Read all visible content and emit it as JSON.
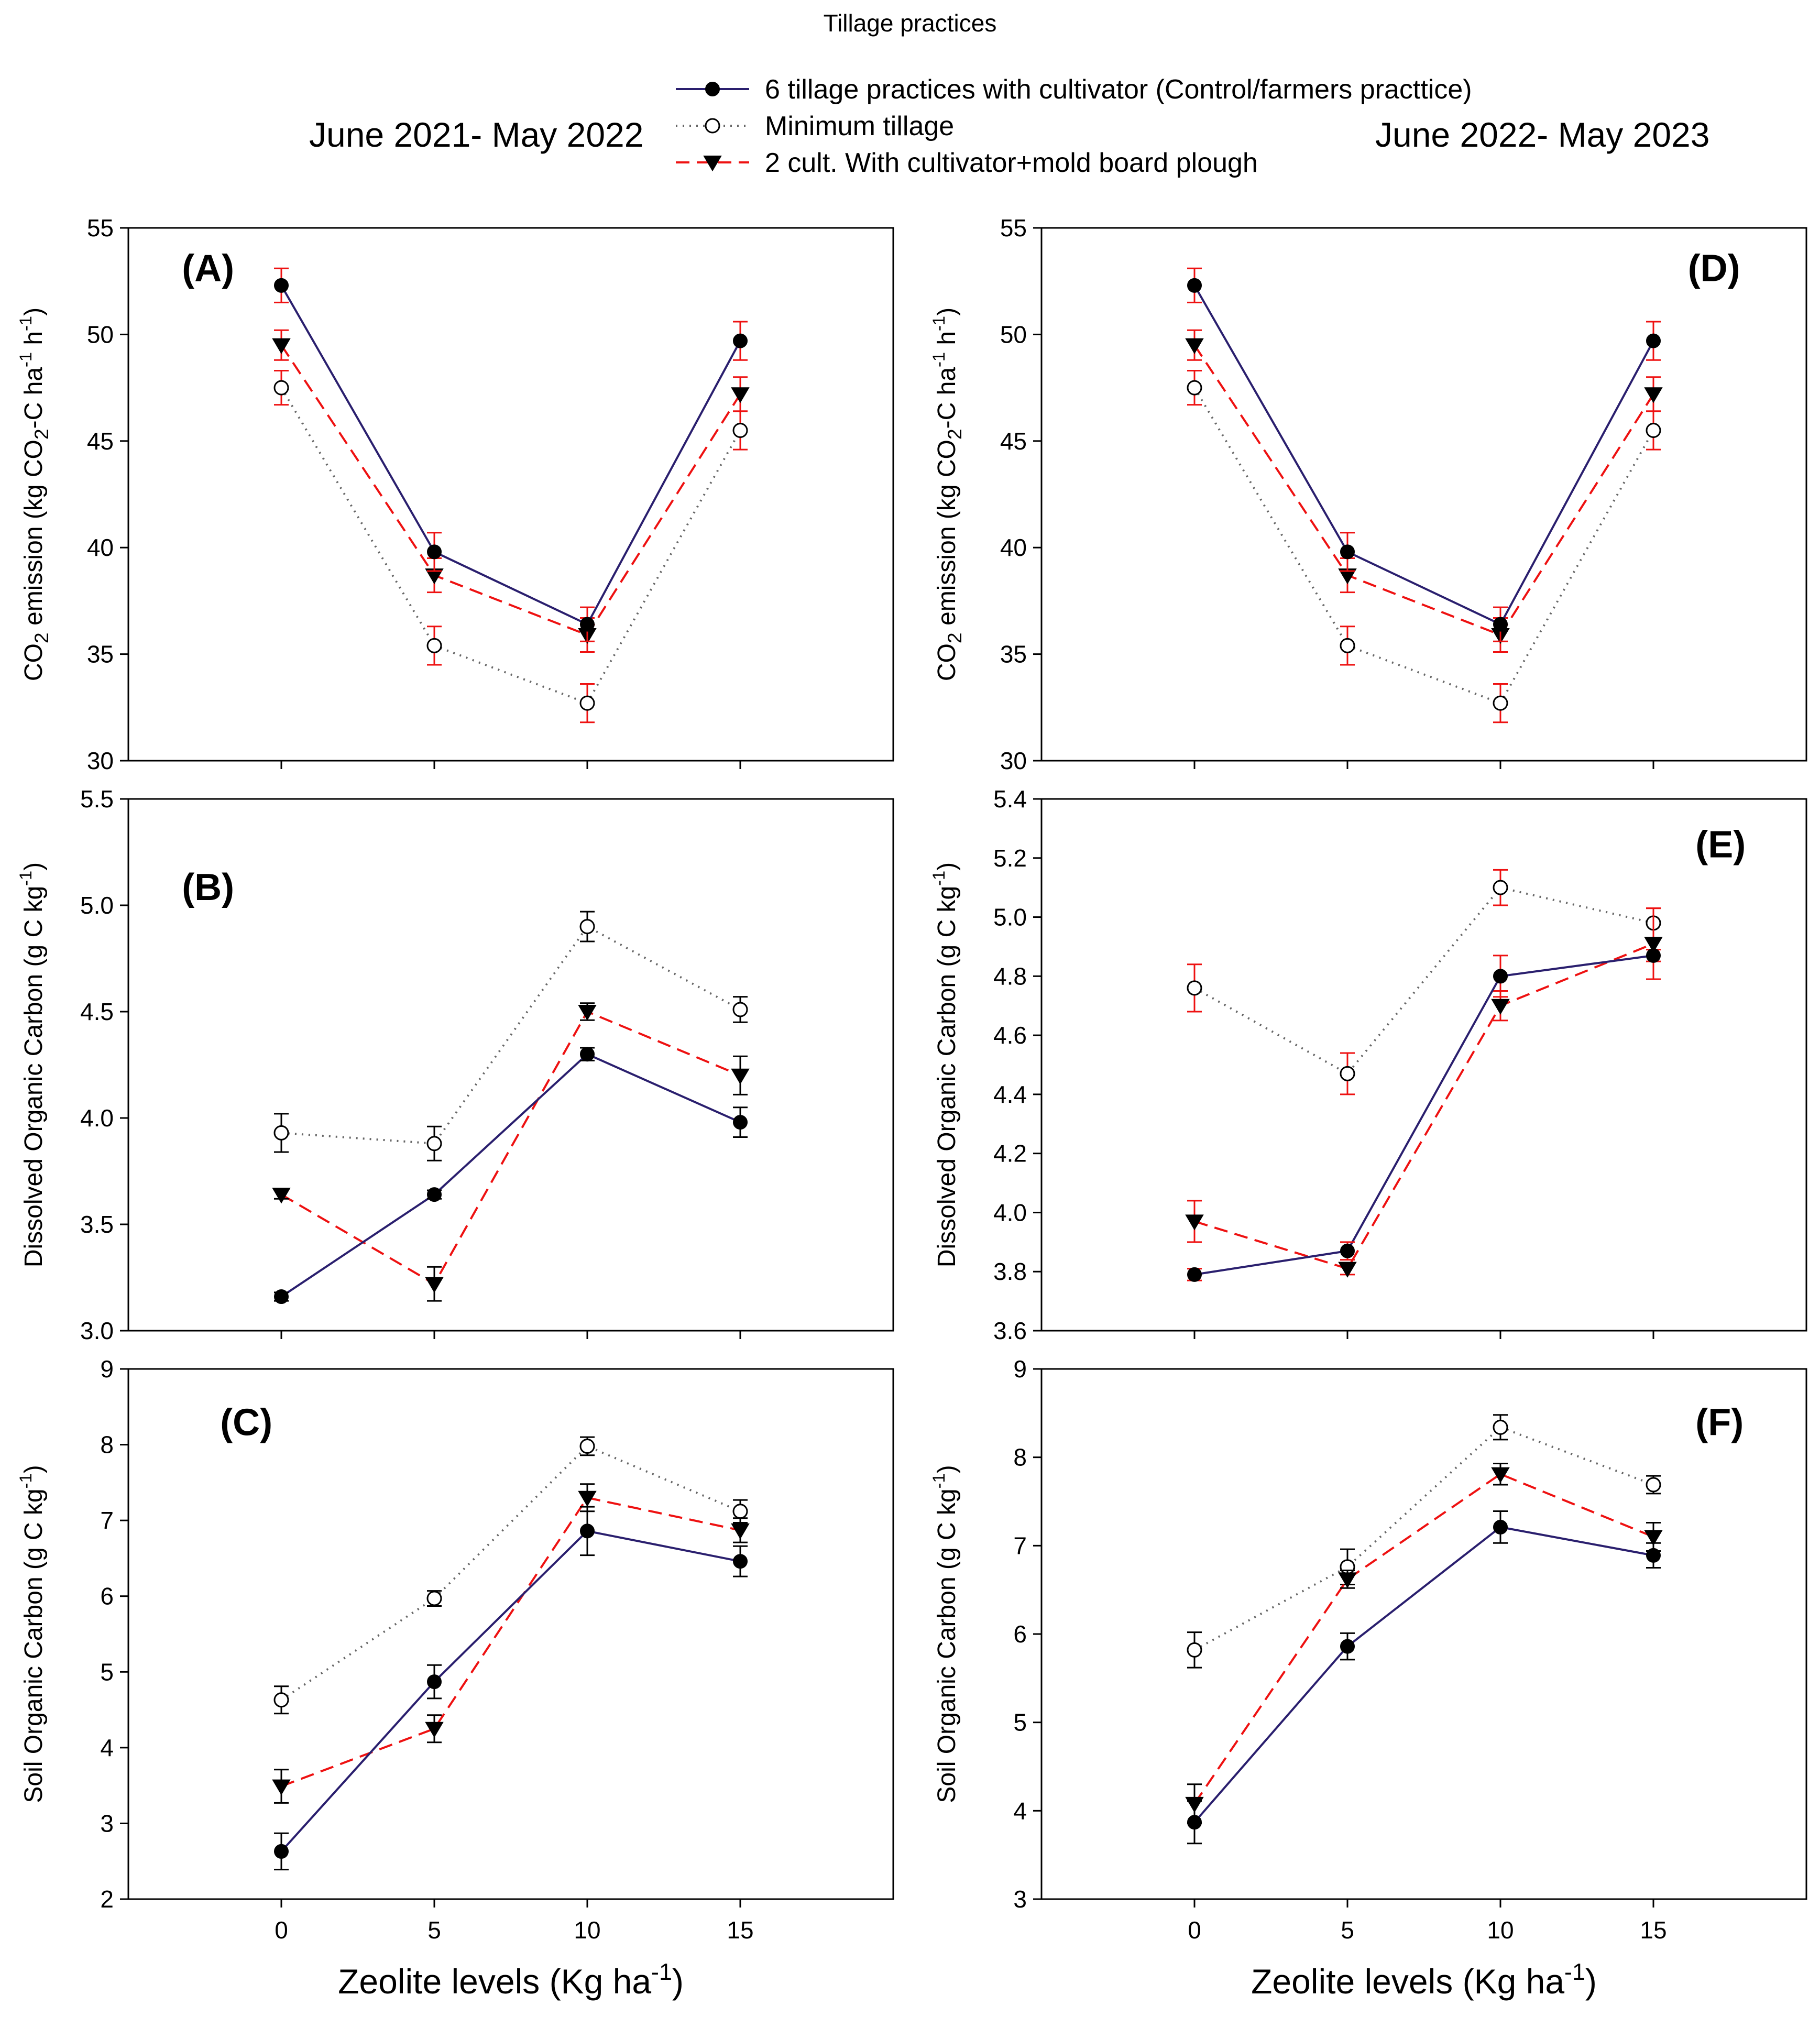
{
  "figure": {
    "title": "Tillage practices",
    "period_left": "June 2021- May 2022",
    "period_right": "June 2022- May 2023",
    "colors": {
      "navy": "#2a1f6e",
      "gray": "#666666",
      "red": "#ee1111",
      "black": "#000000"
    }
  },
  "legend": [
    {
      "key": "control",
      "label": "6 tillage practices with  cultivator (Control/farmers practtice)",
      "color": "#2a1f6e",
      "line": "solid",
      "marker": "filled-circle"
    },
    {
      "key": "minimum",
      "label": "Minimum tillage",
      "color": "#666666",
      "line": "dotted",
      "marker": "open-circle"
    },
    {
      "key": "mold",
      "label": " 2 cult. With cultivator+mold board plough",
      "color": "#ee1111",
      "line": "dashed",
      "marker": "filled-triangle-down"
    }
  ],
  "axis_text": {
    "xlabel": {
      "main": "Zeolite levels (Kg ha",
      "sup": "-1",
      "close": ")"
    },
    "co2": {
      "pre": "CO",
      "sub": "2",
      "mid": " emission (kg CO",
      "sub2": "2",
      "mid2": "-C ha",
      "sup": "-1",
      "mid3": " h",
      "sup2": "-1",
      "close": ")"
    },
    "doc": {
      "main": "Dissolved Organic Carbon (g C kg",
      "sup": "-1",
      "close": ")"
    },
    "soc": {
      "main": "Soil Organic Carbon (g C kg",
      "sup": "-1",
      "close": ")"
    }
  },
  "chart_data": [
    {
      "id": "A",
      "panel_label": "(A)",
      "type": "line",
      "ylabel_key": "co2",
      "x": [
        0,
        5,
        10,
        15
      ],
      "xlim": [
        -5,
        20
      ],
      "xticks": [
        0,
        5,
        10,
        15
      ],
      "ylim": [
        30,
        55
      ],
      "yticks": [
        "30",
        "35",
        "40",
        "45",
        "50",
        "55"
      ],
      "series": [
        {
          "key": "control",
          "name": "6 tillage practices with cultivator (Control/farmers practtice)",
          "values": [
            52.3,
            39.8,
            36.4,
            49.7
          ],
          "errors": [
            0.8,
            0.9,
            0.8,
            0.9
          ]
        },
        {
          "key": "minimum",
          "name": "Minimum tillage",
          "values": [
            47.5,
            35.4,
            32.7,
            45.5
          ],
          "errors": [
            0.8,
            0.9,
            0.9,
            0.9
          ]
        },
        {
          "key": "mold",
          "name": "2 cult. With cultivator+mold board plough",
          "values": [
            49.5,
            38.7,
            35.9,
            47.2
          ],
          "errors": [
            0.7,
            0.8,
            0.8,
            0.8
          ]
        }
      ]
    },
    {
      "id": "B",
      "panel_label": "(B)",
      "type": "line",
      "ylabel_key": "doc",
      "x": [
        0,
        5,
        10,
        15
      ],
      "xlim": [
        -5,
        20
      ],
      "xticks": [
        0,
        5,
        10,
        15
      ],
      "ylim": [
        3.0,
        5.5
      ],
      "yticks": [
        "3.0",
        "3.5",
        "4.0",
        "4.5",
        "5.0",
        "5.5"
      ],
      "series": [
        {
          "key": "control",
          "name": "6 tillage practices with cultivator (Control/farmers practtice)",
          "values": [
            3.16,
            3.64,
            4.3,
            3.98
          ],
          "errors": [
            0.02,
            0.02,
            0.03,
            0.07
          ]
        },
        {
          "key": "minimum",
          "name": "Minimum tillage",
          "values": [
            3.93,
            3.88,
            4.9,
            4.51
          ],
          "errors": [
            0.09,
            0.08,
            0.07,
            0.06
          ]
        },
        {
          "key": "mold",
          "name": "2 cult. With cultivator+mold board plough",
          "values": [
            3.64,
            3.22,
            4.5,
            4.2
          ],
          "errors": [
            0.02,
            0.08,
            0.04,
            0.09
          ]
        }
      ]
    },
    {
      "id": "C",
      "panel_label": "(C)",
      "type": "line",
      "ylabel_key": "soc",
      "x": [
        0,
        5,
        10,
        15
      ],
      "xlim": [
        -5,
        20
      ],
      "xticks": [
        0,
        5,
        10,
        15
      ],
      "ylim": [
        2,
        9
      ],
      "yticks": [
        "2",
        "3",
        "4",
        "5",
        "6",
        "7",
        "8",
        "9"
      ],
      "series": [
        {
          "key": "control",
          "name": "6 tillage practices with cultivator (Control/farmers practtice)",
          "values": [
            2.63,
            4.87,
            6.86,
            6.46
          ],
          "errors": [
            0.24,
            0.22,
            0.32,
            0.2
          ]
        },
        {
          "key": "minimum",
          "name": "Minimum tillage",
          "values": [
            4.63,
            5.97,
            7.98,
            7.12
          ],
          "errors": [
            0.18,
            0.1,
            0.12,
            0.15
          ]
        },
        {
          "key": "mold",
          "name": "2 cult. With cultivator+mold board plough",
          "values": [
            3.49,
            4.25,
            7.3,
            6.87
          ],
          "errors": [
            0.22,
            0.18,
            0.18,
            0.16
          ]
        }
      ]
    },
    {
      "id": "D",
      "panel_label": "(D)",
      "type": "line",
      "ylabel_key": "co2",
      "x": [
        0,
        5,
        10,
        15
      ],
      "xlim": [
        -5,
        20
      ],
      "xticks": [
        0,
        5,
        10,
        15
      ],
      "ylim": [
        30,
        55
      ],
      "yticks": [
        "30",
        "35",
        "40",
        "45",
        "50",
        "55"
      ],
      "series": [
        {
          "key": "control",
          "name": "6 tillage practices with cultivator (Control/farmers practtice)",
          "values": [
            52.3,
            39.8,
            36.4,
            49.7
          ],
          "errors": [
            0.8,
            0.9,
            0.8,
            0.9
          ]
        },
        {
          "key": "minimum",
          "name": "Minimum tillage",
          "values": [
            47.5,
            35.4,
            32.7,
            45.5
          ],
          "errors": [
            0.8,
            0.9,
            0.9,
            0.9
          ]
        },
        {
          "key": "mold",
          "name": "2 cult. With cultivator+mold board plough",
          "values": [
            49.5,
            38.7,
            35.9,
            47.2
          ],
          "errors": [
            0.7,
            0.8,
            0.8,
            0.8
          ]
        }
      ]
    },
    {
      "id": "E",
      "panel_label": "(E)",
      "type": "line",
      "ylabel_key": "doc",
      "x": [
        0,
        5,
        10,
        15
      ],
      "xlim": [
        -5,
        20
      ],
      "xticks": [
        0,
        5,
        10,
        15
      ],
      "ylim": [
        3.6,
        5.4
      ],
      "yticks": [
        "3.6",
        "3.8",
        "4.0",
        "4.2",
        "4.4",
        "4.6",
        "4.8",
        "5.0",
        "5.2",
        "5.4"
      ],
      "series": [
        {
          "key": "control",
          "name": "6 tillage practices with cultivator (Control/farmers practtice)",
          "values": [
            3.79,
            3.87,
            4.8,
            4.87
          ],
          "errors": [
            0.02,
            0.03,
            0.07,
            0.02
          ]
        },
        {
          "key": "minimum",
          "name": "Minimum tillage",
          "values": [
            4.76,
            4.47,
            5.1,
            4.98
          ],
          "errors": [
            0.08,
            0.07,
            0.06,
            0.05
          ]
        },
        {
          "key": "mold",
          "name": "2 cult. With cultivator+mold board plough",
          "values": [
            3.97,
            3.81,
            4.7,
            4.91
          ],
          "errors": [
            0.07,
            0.02,
            0.05,
            0.12
          ]
        }
      ]
    },
    {
      "id": "F",
      "panel_label": "(F)",
      "type": "line",
      "ylabel_key": "soc",
      "x": [
        0,
        5,
        10,
        15
      ],
      "xlim": [
        -5,
        20
      ],
      "xticks": [
        0,
        5,
        10,
        15
      ],
      "ylim": [
        3,
        9
      ],
      "yticks": [
        "3",
        "4",
        "5",
        "6",
        "7",
        "8",
        "9"
      ],
      "series": [
        {
          "key": "control",
          "name": "6 tillage practices with cultivator (Control/farmers practtice)",
          "values": [
            3.87,
            5.86,
            7.21,
            6.89
          ],
          "errors": [
            0.24,
            0.15,
            0.18,
            0.14
          ]
        },
        {
          "key": "minimum",
          "name": "Minimum tillage",
          "values": [
            5.82,
            6.76,
            8.34,
            7.69
          ],
          "errors": [
            0.2,
            0.2,
            0.14,
            0.1
          ]
        },
        {
          "key": "mold",
          "name": "2 cult. With cultivator+mold board plough",
          "values": [
            4.08,
            6.62,
            7.81,
            7.1
          ],
          "errors": [
            0.22,
            0.1,
            0.12,
            0.16
          ]
        }
      ]
    }
  ]
}
